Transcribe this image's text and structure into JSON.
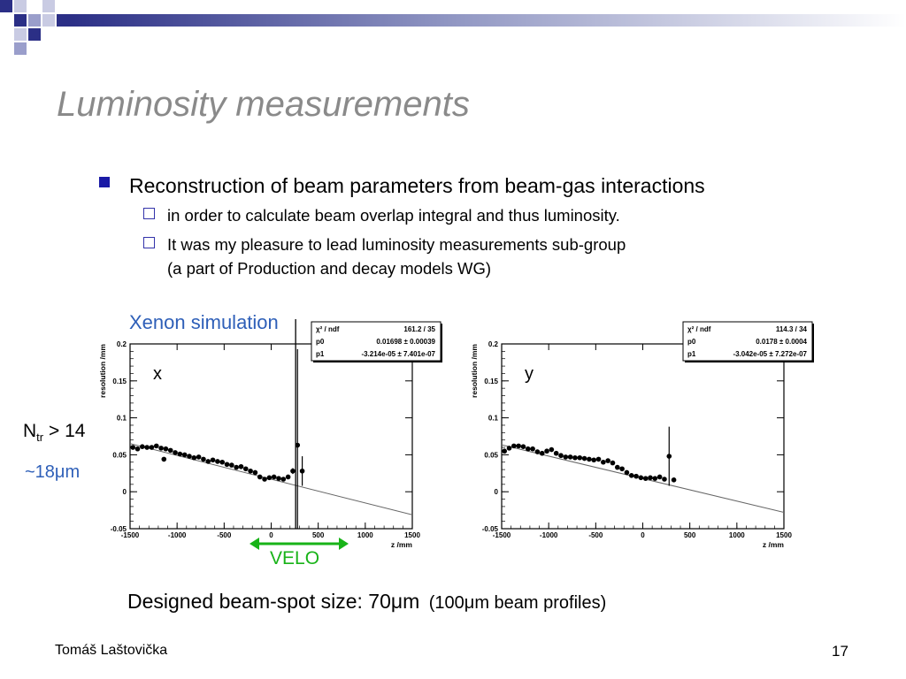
{
  "slide": {
    "title": "Luminosity measurements",
    "bullet": "Reconstruction of beam parameters from beam-gas interactions",
    "sub_bullets": [
      "in order to calculate beam overlap integral and thus luminosity.",
      "It was my pleasure to lead luminosity measurements sub-group",
      "(a part of Production and decay models WG)"
    ],
    "sim_label": "Xenon simulation",
    "ntr_main": "N",
    "ntr_sub": "tr",
    "ntr_cond": "> 14",
    "resolution_note": "~18μm",
    "velo_label": "VELO",
    "beam_spot_main": "Designed beam-spot size: 70μm",
    "beam_spot_aside": "(100μm beam profiles)",
    "footer_author": "Tomáš Laštovička",
    "page_number": "17"
  },
  "colors": {
    "title": "#8a8a8a",
    "bullet": "#1a1aa6",
    "sim_label": "#2e5fb8",
    "velo": "#18b318"
  },
  "chart_data": [
    {
      "type": "scatter",
      "panel_label": "x",
      "xlabel": "z /mm",
      "ylabel": "resolution /mm",
      "xlim": [
        -1500,
        1500
      ],
      "ylim": [
        -0.05,
        0.2
      ],
      "xticks": [
        -1500,
        -1000,
        -500,
        0,
        500,
        1000,
        1500
      ],
      "xtick_labels": [
        "-1500",
        "-1000",
        "-500",
        "0",
        "500",
        "1000",
        "1500"
      ],
      "yticks": [
        -0.05,
        0,
        0.05,
        0.1,
        0.15,
        0.2
      ],
      "ytick_labels": [
        "-0.05",
        "0",
        "0.05",
        "0.1",
        "0.15",
        "0.2"
      ],
      "fit": {
        "p0": 0.01698,
        "p1": -3.214e-05
      },
      "stats_box": [
        {
          "label": "χ² / ndf",
          "value": "161.2 / 35"
        },
        {
          "label": "p0",
          "value": "0.01698 ± 0.00039"
        },
        {
          "label": "p1",
          "value": "-3.214e-05 ± 7.401e-07"
        }
      ],
      "points": [
        [
          -1470,
          0.06,
          0.002
        ],
        [
          -1420,
          0.058,
          0.002
        ],
        [
          -1370,
          0.061,
          0.002
        ],
        [
          -1320,
          0.06,
          0.002
        ],
        [
          -1270,
          0.06,
          0.002
        ],
        [
          -1220,
          0.062,
          0.002
        ],
        [
          -1170,
          0.059,
          0.002
        ],
        [
          -1140,
          0.044,
          0.002
        ],
        [
          -1120,
          0.058,
          0.002
        ],
        [
          -1070,
          0.056,
          0.002
        ],
        [
          -1020,
          0.053,
          0.002
        ],
        [
          -970,
          0.051,
          0.002
        ],
        [
          -920,
          0.05,
          0.002
        ],
        [
          -870,
          0.048,
          0.002
        ],
        [
          -820,
          0.046,
          0.002
        ],
        [
          -770,
          0.047,
          0.002
        ],
        [
          -720,
          0.044,
          0.002
        ],
        [
          -670,
          0.041,
          0.002
        ],
        [
          -620,
          0.043,
          0.002
        ],
        [
          -570,
          0.041,
          0.002
        ],
        [
          -520,
          0.04,
          0.002
        ],
        [
          -470,
          0.037,
          0.002
        ],
        [
          -420,
          0.036,
          0.002
        ],
        [
          -370,
          0.033,
          0.002
        ],
        [
          -320,
          0.034,
          0.002
        ],
        [
          -270,
          0.031,
          0.002
        ],
        [
          -220,
          0.028,
          0.002
        ],
        [
          -170,
          0.026,
          0.002
        ],
        [
          -120,
          0.02,
          0.002
        ],
        [
          -70,
          0.017,
          0.002
        ],
        [
          -20,
          0.019,
          0.002
        ],
        [
          30,
          0.02,
          0.002
        ],
        [
          80,
          0.018,
          0.002
        ],
        [
          130,
          0.017,
          0.002
        ],
        [
          180,
          0.02,
          0.002
        ],
        [
          230,
          0.028,
          0.004
        ],
        [
          280,
          0.063,
          0.13
        ],
        [
          330,
          0.028,
          0.02
        ]
      ]
    },
    {
      "type": "scatter",
      "panel_label": "y",
      "xlabel": "z /mm",
      "ylabel": "resolution /mm",
      "xlim": [
        -1500,
        1500
      ],
      "ylim": [
        -0.05,
        0.2
      ],
      "xticks": [
        -1500,
        -1000,
        -500,
        0,
        500,
        1000,
        1500
      ],
      "xtick_labels": [
        "-1500",
        "-1000",
        "-500",
        "0",
        "500",
        "1000",
        "1500"
      ],
      "yticks": [
        -0.05,
        0,
        0.05,
        0.1,
        0.15,
        0.2
      ],
      "ytick_labels": [
        "-0.05",
        "0",
        "0.05",
        "0.1",
        "0.15",
        "0.2"
      ],
      "fit": {
        "p0": 0.0178,
        "p1": -3.042e-05
      },
      "stats_box": [
        {
          "label": "χ² / ndf",
          "value": "114.3 / 34"
        },
        {
          "label": "p0",
          "value": "0.0178 ± 0.0004"
        },
        {
          "label": "p1",
          "value": "-3.042e-05 ± 7.272e-07"
        }
      ],
      "points": [
        [
          -1470,
          0.055,
          0.002
        ],
        [
          -1420,
          0.059,
          0.002
        ],
        [
          -1370,
          0.062,
          0.002
        ],
        [
          -1320,
          0.062,
          0.002
        ],
        [
          -1270,
          0.061,
          0.002
        ],
        [
          -1220,
          0.058,
          0.002
        ],
        [
          -1170,
          0.058,
          0.002
        ],
        [
          -1120,
          0.054,
          0.002
        ],
        [
          -1070,
          0.052,
          0.002
        ],
        [
          -1020,
          0.055,
          0.002
        ],
        [
          -970,
          0.057,
          0.002
        ],
        [
          -920,
          0.052,
          0.002
        ],
        [
          -870,
          0.049,
          0.002
        ],
        [
          -820,
          0.047,
          0.002
        ],
        [
          -770,
          0.047,
          0.002
        ],
        [
          -720,
          0.046,
          0.002
        ],
        [
          -670,
          0.046,
          0.002
        ],
        [
          -620,
          0.045,
          0.002
        ],
        [
          -570,
          0.044,
          0.002
        ],
        [
          -520,
          0.043,
          0.002
        ],
        [
          -470,
          0.044,
          0.002
        ],
        [
          -420,
          0.04,
          0.002
        ],
        [
          -370,
          0.042,
          0.002
        ],
        [
          -320,
          0.039,
          0.002
        ],
        [
          -270,
          0.033,
          0.002
        ],
        [
          -220,
          0.031,
          0.002
        ],
        [
          -170,
          0.026,
          0.002
        ],
        [
          -120,
          0.022,
          0.002
        ],
        [
          -70,
          0.021,
          0.002
        ],
        [
          -20,
          0.019,
          0.002
        ],
        [
          30,
          0.018,
          0.002
        ],
        [
          80,
          0.019,
          0.002
        ],
        [
          130,
          0.018,
          0.002
        ],
        [
          180,
          0.02,
          0.002
        ],
        [
          230,
          0.017,
          0.002
        ],
        [
          280,
          0.048,
          0.04
        ],
        [
          330,
          0.016,
          0.002
        ]
      ]
    }
  ]
}
